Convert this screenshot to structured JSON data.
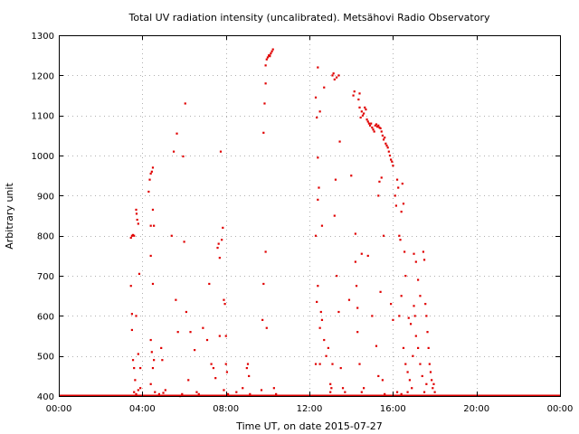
{
  "chart_data": {
    "type": "scatter",
    "title": "Total UV radiation intensity (uncalibrated). Metsähovi Radio Observatory",
    "xlabel": "Time UT, on date 2015-07-27",
    "ylabel": "Arbitrary unit",
    "xlim": [
      0,
      24
    ],
    "ylim": [
      400,
      1300
    ],
    "x_ticks": [
      {
        "value": 0,
        "label": "00:00"
      },
      {
        "value": 4,
        "label": "04:00"
      },
      {
        "value": 8,
        "label": "08:00"
      },
      {
        "value": 12,
        "label": "12:00"
      },
      {
        "value": 16,
        "label": "16:00"
      },
      {
        "value": 20,
        "label": "20:00"
      },
      {
        "value": 24,
        "label": "00:00"
      }
    ],
    "y_ticks": [
      {
        "value": 400,
        "label": "400"
      },
      {
        "value": 500,
        "label": "500"
      },
      {
        "value": 600,
        "label": "600"
      },
      {
        "value": 700,
        "label": "700"
      },
      {
        "value": 800,
        "label": "800"
      },
      {
        "value": 900,
        "label": "900"
      },
      {
        "value": 1000,
        "label": "1000"
      },
      {
        "value": 1100,
        "label": "1100"
      },
      {
        "value": 1200,
        "label": "1200"
      },
      {
        "value": 1300,
        "label": "1300"
      }
    ],
    "grid": true,
    "marker_color": "#e00000",
    "series": [
      {
        "baseline": {
          "value": 400,
          "x_start": 0,
          "x_end": 24
        },
        "points": [
          [
            3.45,
            795
          ],
          [
            3.5,
            800
          ],
          [
            3.55,
            802
          ],
          [
            3.6,
            800
          ],
          [
            3.45,
            675
          ],
          [
            3.5,
            605
          ],
          [
            3.5,
            565
          ],
          [
            3.55,
            490
          ],
          [
            3.6,
            470
          ],
          [
            3.65,
            440
          ],
          [
            3.7,
            600
          ],
          [
            3.7,
            865
          ],
          [
            3.72,
            855
          ],
          [
            3.75,
            840
          ],
          [
            3.8,
            830
          ],
          [
            3.85,
            705
          ],
          [
            3.8,
            505
          ],
          [
            3.9,
            470
          ],
          [
            3.9,
            420
          ],
          [
            3.6,
            410
          ],
          [
            3.7,
            405
          ],
          [
            3.8,
            415
          ],
          [
            4.3,
            910
          ],
          [
            4.35,
            940
          ],
          [
            4.4,
            955
          ],
          [
            4.45,
            960
          ],
          [
            4.5,
            970
          ],
          [
            4.4,
            825
          ],
          [
            4.55,
            825
          ],
          [
            4.5,
            865
          ],
          [
            4.4,
            750
          ],
          [
            4.5,
            680
          ],
          [
            4.4,
            540
          ],
          [
            4.45,
            510
          ],
          [
            4.55,
            490
          ],
          [
            4.5,
            470
          ],
          [
            4.4,
            430
          ],
          [
            4.6,
            410
          ],
          [
            4.8,
            405
          ],
          [
            5.0,
            408
          ],
          [
            4.9,
            520
          ],
          [
            4.95,
            490
          ],
          [
            5.1,
            415
          ],
          [
            5.4,
            800
          ],
          [
            5.5,
            1010
          ],
          [
            5.6,
            640
          ],
          [
            5.7,
            560
          ],
          [
            5.65,
            1055
          ],
          [
            5.8,
            400
          ],
          [
            5.9,
            405
          ],
          [
            5.95,
            998
          ],
          [
            6.0,
            785
          ],
          [
            6.05,
            1130
          ],
          [
            6.1,
            610
          ],
          [
            6.2,
            440
          ],
          [
            6.3,
            560
          ],
          [
            6.5,
            515
          ],
          [
            6.6,
            410
          ],
          [
            6.7,
            405
          ],
          [
            6.9,
            570
          ],
          [
            7.1,
            540
          ],
          [
            7.2,
            680
          ],
          [
            7.3,
            480
          ],
          [
            7.4,
            470
          ],
          [
            7.5,
            445
          ],
          [
            7.6,
            770
          ],
          [
            7.65,
            780
          ],
          [
            7.7,
            745
          ],
          [
            7.7,
            550
          ],
          [
            7.75,
            1010
          ],
          [
            7.8,
            790
          ],
          [
            7.85,
            820
          ],
          [
            7.9,
            640
          ],
          [
            7.95,
            630
          ],
          [
            8.0,
            550
          ],
          [
            8.0,
            480
          ],
          [
            8.05,
            460
          ],
          [
            7.9,
            415
          ],
          [
            8.1,
            405
          ],
          [
            8.5,
            410
          ],
          [
            8.8,
            420
          ],
          [
            9.0,
            470
          ],
          [
            9.05,
            480
          ],
          [
            9.1,
            450
          ],
          [
            9.15,
            405
          ],
          [
            9.7,
            415
          ],
          [
            9.75,
            590
          ],
          [
            9.8,
            1057
          ],
          [
            9.85,
            1130
          ],
          [
            9.8,
            680
          ],
          [
            9.9,
            1180
          ],
          [
            9.9,
            760
          ],
          [
            9.95,
            570
          ],
          [
            9.9,
            1225
          ],
          [
            9.95,
            1240
          ],
          [
            10.0,
            1245
          ],
          [
            10.05,
            1250
          ],
          [
            10.1,
            1250
          ],
          [
            10.15,
            1255
          ],
          [
            10.2,
            1260
          ],
          [
            10.1,
            1248
          ],
          [
            10.25,
            1265
          ],
          [
            10.3,
            420
          ],
          [
            10.4,
            405
          ],
          [
            12.4,
            1220
          ],
          [
            12.3,
            1145
          ],
          [
            12.35,
            1095
          ],
          [
            12.4,
            995
          ],
          [
            12.4,
            890
          ],
          [
            12.45,
            920
          ],
          [
            12.3,
            800
          ],
          [
            12.35,
            635
          ],
          [
            12.4,
            675
          ],
          [
            12.3,
            480
          ],
          [
            12.5,
            480
          ],
          [
            12.5,
            570
          ],
          [
            12.55,
            610
          ],
          [
            12.6,
            590
          ],
          [
            12.5,
            1110
          ],
          [
            12.7,
            1170
          ],
          [
            12.6,
            825
          ],
          [
            12.7,
            540
          ],
          [
            12.8,
            500
          ],
          [
            12.9,
            520
          ],
          [
            13.0,
            430
          ],
          [
            13.1,
            480
          ],
          [
            13.0,
            410
          ],
          [
            13.05,
            420
          ],
          [
            13.1,
            1200
          ],
          [
            13.15,
            1205
          ],
          [
            13.2,
            1190
          ],
          [
            13.25,
            940
          ],
          [
            13.2,
            850
          ],
          [
            13.3,
            1195
          ],
          [
            13.4,
            1200
          ],
          [
            13.45,
            1035
          ],
          [
            13.3,
            700
          ],
          [
            13.4,
            610
          ],
          [
            13.5,
            470
          ],
          [
            13.6,
            420
          ],
          [
            13.7,
            410
          ],
          [
            13.9,
            640
          ],
          [
            14.0,
            950
          ],
          [
            14.1,
            1150
          ],
          [
            14.15,
            1160
          ],
          [
            14.2,
            735
          ],
          [
            14.25,
            675
          ],
          [
            14.3,
            620
          ],
          [
            14.2,
            805
          ],
          [
            14.3,
            560
          ],
          [
            14.4,
            1155
          ],
          [
            14.35,
            1140
          ],
          [
            14.4,
            1120
          ],
          [
            14.45,
            1095
          ],
          [
            14.5,
            1110
          ],
          [
            14.55,
            1100
          ],
          [
            14.6,
            1105
          ],
          [
            14.65,
            1120
          ],
          [
            14.7,
            1115
          ],
          [
            14.75,
            1090
          ],
          [
            14.8,
            1085
          ],
          [
            14.85,
            1080
          ],
          [
            14.9,
            1075
          ],
          [
            14.95,
            1080
          ],
          [
            15.0,
            1070
          ],
          [
            15.05,
            1065
          ],
          [
            15.1,
            1060
          ],
          [
            15.15,
            1075
          ],
          [
            15.2,
            1078
          ],
          [
            15.25,
            1072
          ],
          [
            15.3,
            1075
          ],
          [
            15.35,
            1070
          ],
          [
            15.4,
            1068
          ],
          [
            15.45,
            1060
          ],
          [
            15.5,
            1050
          ],
          [
            15.55,
            1040
          ],
          [
            15.6,
            1045
          ],
          [
            15.65,
            1030
          ],
          [
            15.7,
            1025
          ],
          [
            15.75,
            1020
          ],
          [
            15.8,
            1010
          ],
          [
            15.85,
            1000
          ],
          [
            15.9,
            990
          ],
          [
            15.95,
            985
          ],
          [
            16.0,
            975
          ],
          [
            14.5,
            755
          ],
          [
            14.4,
            480
          ],
          [
            14.5,
            410
          ],
          [
            14.6,
            420
          ],
          [
            14.8,
            750
          ],
          [
            15.0,
            600
          ],
          [
            15.2,
            525
          ],
          [
            15.3,
            450
          ],
          [
            15.4,
            660
          ],
          [
            15.5,
            440
          ],
          [
            15.6,
            405
          ],
          [
            15.3,
            900
          ],
          [
            15.35,
            935
          ],
          [
            15.45,
            945
          ],
          [
            15.55,
            800
          ],
          [
            15.9,
            630
          ],
          [
            16.0,
            590
          ],
          [
            16.1,
            900
          ],
          [
            16.15,
            875
          ],
          [
            16.2,
            940
          ],
          [
            16.25,
            920
          ],
          [
            16.3,
            800
          ],
          [
            16.35,
            790
          ],
          [
            16.4,
            860
          ],
          [
            16.45,
            930
          ],
          [
            16.5,
            880
          ],
          [
            16.55,
            760
          ],
          [
            16.6,
            700
          ],
          [
            16.3,
            600
          ],
          [
            16.4,
            650
          ],
          [
            16.5,
            520
          ],
          [
            16.6,
            480
          ],
          [
            16.7,
            460
          ],
          [
            16.8,
            440
          ],
          [
            16.9,
            420
          ],
          [
            16.75,
            595
          ],
          [
            16.85,
            580
          ],
          [
            16.95,
            500
          ],
          [
            17.0,
            625
          ],
          [
            17.05,
            600
          ],
          [
            17.1,
            550
          ],
          [
            17.2,
            520
          ],
          [
            17.3,
            480
          ],
          [
            17.4,
            450
          ],
          [
            17.0,
            755
          ],
          [
            17.1,
            735
          ],
          [
            17.2,
            690
          ],
          [
            17.3,
            650
          ],
          [
            17.45,
            760
          ],
          [
            17.5,
            740
          ],
          [
            17.55,
            630
          ],
          [
            17.6,
            600
          ],
          [
            17.65,
            560
          ],
          [
            17.7,
            520
          ],
          [
            17.75,
            480
          ],
          [
            17.8,
            460
          ],
          [
            17.85,
            440
          ],
          [
            17.9,
            420
          ],
          [
            17.95,
            430
          ],
          [
            18.0,
            410
          ],
          [
            17.5,
            410
          ],
          [
            17.6,
            430
          ],
          [
            16.2,
            410
          ],
          [
            16.4,
            405
          ],
          [
            16.7,
            410
          ]
        ]
      }
    ]
  }
}
